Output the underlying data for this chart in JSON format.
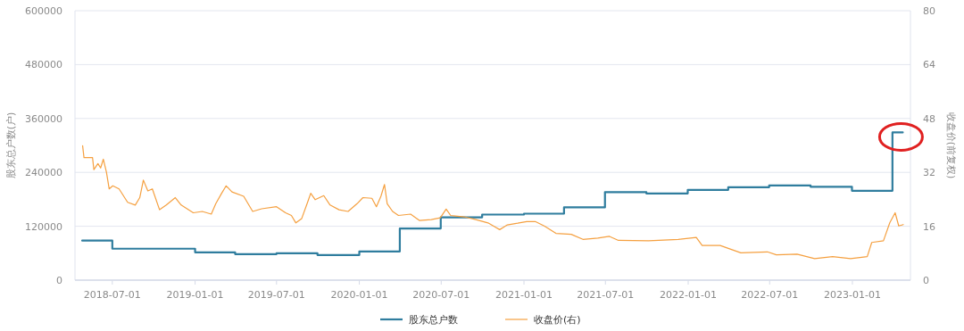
{
  "chart_data": {
    "type": "line",
    "ylabel": "股东总户数(户)",
    "y2label": "收盘价(前复权)",
    "xlim": [
      "2018-04-09",
      "2023-05-10"
    ],
    "xticks": [
      "2018-07-01",
      "2019-01-01",
      "2019-07-01",
      "2020-01-01",
      "2020-07-01",
      "2021-01-01",
      "2021-07-01",
      "2022-01-01",
      "2022-07-01",
      "2023-01-01"
    ],
    "ylim": [
      0,
      600000
    ],
    "yticks": [
      0,
      120000,
      240000,
      360000,
      480000,
      600000
    ],
    "y2lim": [
      0,
      80
    ],
    "y2ticks": [
      0,
      16,
      32,
      48,
      64,
      80
    ],
    "grid": "y",
    "legend": "bottom",
    "series": [
      {
        "name": "股东总户数",
        "type": "step",
        "color": "#2f7d9e",
        "x": [
          "2018-04-25",
          "2018-07-01",
          "2019-01-01",
          "2019-03-31",
          "2019-07-01",
          "2019-09-30",
          "2020-01-01",
          "2020-03-31",
          "2020-06-30",
          "2020-09-30",
          "2021-01-01",
          "2021-03-31",
          "2021-06-30",
          "2021-09-30",
          "2021-12-31",
          "2022-03-31",
          "2022-06-30",
          "2022-09-30",
          "2022-12-31",
          "2023-03-31",
          "2023-04-23"
        ],
        "values": [
          88000,
          70000,
          62000,
          58000,
          60000,
          56000,
          64000,
          115000,
          140000,
          146000,
          148000,
          162000,
          196000,
          193000,
          201000,
          207000,
          211000,
          208000,
          199000,
          329000,
          329000
        ]
      },
      {
        "name": "收盘价(右)",
        "axis": "y2",
        "color": "#f5a040",
        "x": [
          "2018-04-26",
          "2018-04-29",
          "2018-05-18",
          "2018-05-21",
          "2018-05-30",
          "2018-06-05",
          "2018-06-11",
          "2018-06-18",
          "2018-06-24",
          "2018-07-02",
          "2018-07-16",
          "2018-08-04",
          "2018-08-21",
          "2018-08-31",
          "2018-09-08",
          "2018-09-18",
          "2018-09-28",
          "2018-10-14",
          "2018-10-29",
          "2018-11-18",
          "2018-12-01",
          "2018-12-28",
          "2019-01-17",
          "2019-02-06",
          "2019-02-16",
          "2019-03-01",
          "2019-03-11",
          "2019-03-24",
          "2019-04-19",
          "2019-05-09",
          "2019-05-29",
          "2019-07-01",
          "2019-07-21",
          "2019-08-03",
          "2019-08-13",
          "2019-08-26",
          "2019-09-08",
          "2019-09-15",
          "2019-09-25",
          "2019-10-14",
          "2019-10-28",
          "2019-11-17",
          "2019-12-07",
          "2019-12-27",
          "2020-01-09",
          "2020-01-29",
          "2020-02-08",
          "2020-02-18",
          "2020-02-26",
          "2020-03-03",
          "2020-03-15",
          "2020-03-28",
          "2020-04-24",
          "2020-05-14",
          "2020-06-09",
          "2020-06-29",
          "2020-07-12",
          "2020-07-22",
          "2020-08-21",
          "2020-09-16",
          "2020-10-13",
          "2020-11-08",
          "2020-11-25",
          "2020-12-18",
          "2021-01-07",
          "2021-01-26",
          "2021-02-15",
          "2021-03-13",
          "2021-04-16",
          "2021-05-12",
          "2021-06-14",
          "2021-07-10",
          "2021-07-30",
          "2021-10-05",
          "2021-12-10",
          "2022-01-19",
          "2022-02-01",
          "2022-03-13",
          "2022-04-28",
          "2022-06-26",
          "2022-07-16",
          "2022-08-31",
          "2022-10-09",
          "2022-11-18",
          "2022-12-28",
          "2023-02-03",
          "2023-02-13",
          "2023-03-11",
          "2023-03-25",
          "2023-04-06",
          "2023-04-14",
          "2023-04-24"
        ],
        "values": [
          39.9,
          36.4,
          36.4,
          32.8,
          34.6,
          33.3,
          35.9,
          32.0,
          27.1,
          28.0,
          27.1,
          23.1,
          22.3,
          24.5,
          29.7,
          26.5,
          27.1,
          20.9,
          22.3,
          24.5,
          22.3,
          20.0,
          20.4,
          19.6,
          22.7,
          25.8,
          28.0,
          26.2,
          24.9,
          20.4,
          21.2,
          21.8,
          20.0,
          19.2,
          17.0,
          18.3,
          23.1,
          25.8,
          23.9,
          25.1,
          22.3,
          20.9,
          20.4,
          22.7,
          24.5,
          24.3,
          21.8,
          24.9,
          28.4,
          22.7,
          20.4,
          19.2,
          19.6,
          17.7,
          18.0,
          18.5,
          21.1,
          19.2,
          18.8,
          18.0,
          17.0,
          15.0,
          16.4,
          16.9,
          17.4,
          17.4,
          16.1,
          13.9,
          13.6,
          12.1,
          12.5,
          13.0,
          11.8,
          11.7,
          12.1,
          12.7,
          10.3,
          10.3,
          8.1,
          8.4,
          7.5,
          7.7,
          6.4,
          7.0,
          6.4,
          7.0,
          11.2,
          11.7,
          17.0,
          20.0,
          16.1,
          16.5
        ]
      }
    ]
  }
}
